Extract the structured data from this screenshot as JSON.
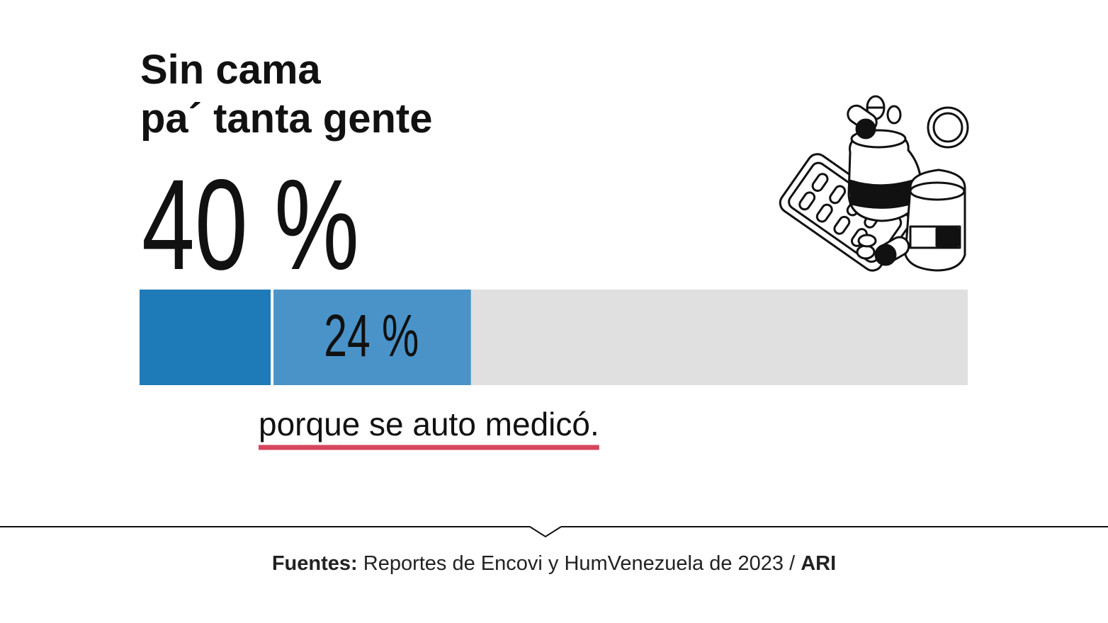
{
  "chart_data": {
    "type": "bar",
    "title": "Sin cama",
    "subtitle": "pa´ tanta gente",
    "values": [
      40,
      24
    ],
    "value_labels": [
      "40 %",
      "24 %"
    ],
    "colors": [
      "#1f7ab8",
      "#4a93c8"
    ],
    "track_color": "#e0e0e0",
    "xlim": [
      0,
      100
    ],
    "annotation": "porque se auto medicó.",
    "source": {
      "label": "Fuentes:",
      "text": "Reportes de Encovi y HumVenezuela de 2023 /",
      "org": "ARI"
    }
  }
}
